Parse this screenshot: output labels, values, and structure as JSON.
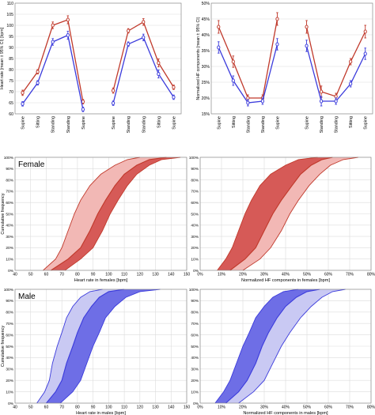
{
  "colors": {
    "red": "#c0392b",
    "blue": "#3b3bdc",
    "red_light": "#f2b8b5",
    "red_dark": "#d65a57",
    "blue_light": "#c9c9f3",
    "blue_dark": "#6e6ee6"
  },
  "chart_data": [
    {
      "type": "line",
      "ylabel": "Heart rate (mean ± 95% CI) [bpm]",
      "ylim": [
        60,
        110
      ],
      "yticks": [
        60,
        65,
        70,
        75,
        80,
        85,
        90,
        95,
        100,
        105,
        110
      ],
      "categories": [
        "Supine",
        "Sitting",
        "Standing",
        "Standing",
        "Supine",
        "Supine",
        "Standing",
        "Standing",
        "Sitting",
        "Supine"
      ],
      "x": [
        0,
        1,
        2,
        3,
        4,
        6,
        7,
        8,
        9,
        10
      ],
      "grid": true,
      "series": [
        {
          "color_key": "red",
          "groups": [
            [
              69.5,
              79,
              100,
              102.5,
              65.5
            ],
            [
              70.5,
              97.5,
              101.5,
              83,
              72
            ]
          ],
          "errors": [
            1.2,
            1.0,
            1.5,
            1.8,
            1.0
          ]
        },
        {
          "color_key": "blue",
          "groups": [
            [
              64.5,
              74,
              92.5,
              95.5,
              62
            ],
            [
              64.8,
              91.5,
              94.5,
              78,
              67.5
            ]
          ],
          "errors": [
            1.0,
            1.0,
            1.5,
            1.8,
            1.0
          ]
        }
      ]
    },
    {
      "type": "line",
      "ylabel": "Normalized HF components (mean ± 95% CI)",
      "ylim": [
        15,
        50
      ],
      "yticks": [
        "15%",
        "20%",
        "25%",
        "30%",
        "35%",
        "40%",
        "45%",
        "50%"
      ],
      "categories": [
        "Supine",
        "Sitting",
        "Standing",
        "Standing",
        "Supine",
        "Supine",
        "Standing",
        "Standing",
        "Sitting",
        "Supine"
      ],
      "x": [
        0,
        1,
        2,
        3,
        4,
        6,
        7,
        8,
        9,
        10
      ],
      "grid": true,
      "series": [
        {
          "color_key": "red",
          "groups": [
            [
              42.5,
              31.5,
              20,
              20,
              45
            ],
            [
              42.5,
              22,
              20.5,
              31.5,
              41
            ]
          ],
          "errors": [
            2.0,
            1.8,
            1.0,
            1.0,
            2.0
          ]
        },
        {
          "color_key": "blue",
          "groups": [
            [
              36,
              25.5,
              18.5,
              19,
              37
            ],
            [
              36.5,
              19,
              19,
              24.5,
              34
            ]
          ],
          "errors": [
            1.8,
            1.5,
            1.0,
            1.0,
            1.8
          ]
        }
      ]
    },
    {
      "type": "area",
      "panel_label": "Female",
      "xlabel": "Heart rate in females [bpm]",
      "ylabel": "Cumulative frequency",
      "xlim": [
        40,
        150
      ],
      "xticks": [
        "40",
        "50",
        "60",
        "70",
        "80",
        "90",
        "100",
        "110",
        "120",
        "130",
        "140",
        "150"
      ],
      "yticks": [
        "0%",
        "10%",
        "20%",
        "30%",
        "40%",
        "50%",
        "60%",
        "70%",
        "80%",
        "90%",
        "100%"
      ],
      "grid": true,
      "series": [
        {
          "light_key": "red_light",
          "line_key": "red",
          "x": [
            58,
            66,
            70,
            74,
            78,
            82,
            88,
            95,
            104,
            112,
            120
          ],
          "y": [
            0,
            10,
            20,
            35,
            50,
            62,
            75,
            85,
            93,
            98,
            100
          ]
        },
        {
          "dark_key": "red_dark",
          "line_key": "red",
          "x": [
            63,
            74,
            82,
            88,
            93,
            98,
            104,
            110,
            118,
            126,
            137
          ],
          "y": [
            0,
            10,
            20,
            35,
            50,
            62,
            75,
            85,
            93,
            98,
            100
          ]
        },
        {
          "line_key": "red",
          "x": [
            72,
            82,
            90,
            96,
            101,
            106,
            112,
            118,
            126,
            134,
            146
          ],
          "y": [
            0,
            10,
            20,
            35,
            50,
            62,
            75,
            85,
            93,
            98,
            100
          ]
        }
      ]
    },
    {
      "type": "area",
      "xlabel": "Normalized HF components in females [bpm]",
      "xlim": [
        0,
        80
      ],
      "xticks": [
        "0%",
        "10%",
        "20%",
        "30%",
        "40%",
        "50%",
        "60%",
        "70%",
        "80%"
      ],
      "yticks": [
        "0%",
        "10%",
        "20%",
        "30%",
        "40%",
        "50%",
        "60%",
        "70%",
        "80%",
        "90%",
        "100%"
      ],
      "grid": true,
      "series": [
        {
          "line_key": "red",
          "x": [
            8,
            12,
            15,
            18,
            21,
            24,
            28,
            33,
            40,
            46,
            55
          ],
          "y": [
            0,
            10,
            20,
            35,
            50,
            62,
            75,
            85,
            93,
            98,
            100
          ]
        },
        {
          "dark_key": "red_dark",
          "line_key": "red",
          "x": [
            14,
            21,
            26,
            30,
            34,
            38,
            43,
            47,
            52,
            57,
            62
          ],
          "y": [
            0,
            10,
            20,
            35,
            50,
            62,
            75,
            85,
            93,
            98,
            100
          ]
        },
        {
          "light_key": "red_light",
          "line_key": "red",
          "x": [
            20,
            28,
            33,
            38,
            42,
            46,
            51,
            56,
            61,
            67,
            74
          ],
          "y": [
            0,
            10,
            20,
            35,
            50,
            62,
            75,
            85,
            93,
            98,
            100
          ]
        }
      ]
    },
    {
      "type": "area",
      "panel_label": "Male",
      "xlabel": "Heart rate in males [bpm]",
      "ylabel": "Cumulative frequency",
      "xlim": [
        40,
        150
      ],
      "xticks": [
        "40",
        "50",
        "60",
        "70",
        "80",
        "90",
        "100",
        "110",
        "120",
        "130",
        "140",
        "150"
      ],
      "yticks": [
        "0%",
        "10%",
        "20%",
        "30%",
        "40%",
        "50%",
        "60%",
        "70%",
        "80%",
        "90%",
        "100%"
      ],
      "grid": true,
      "series": [
        {
          "light_key": "blue_light",
          "line_key": "blue",
          "x": [
            54,
            59,
            62,
            64,
            67,
            70,
            73,
            77,
            82,
            88,
            96
          ],
          "y": [
            0,
            10,
            20,
            35,
            50,
            62,
            75,
            85,
            93,
            98,
            100
          ]
        },
        {
          "dark_key": "blue_dark",
          "line_key": "blue",
          "x": [
            60,
            66,
            70,
            73,
            77,
            80,
            84,
            89,
            94,
            100,
            110
          ],
          "y": [
            0,
            10,
            20,
            35,
            50,
            62,
            75,
            85,
            93,
            98,
            100
          ]
        },
        {
          "line_key": "blue",
          "x": [
            69,
            77,
            82,
            86,
            90,
            94,
            98,
            104,
            111,
            120,
            133
          ],
          "y": [
            0,
            10,
            20,
            35,
            50,
            62,
            75,
            85,
            93,
            98,
            100
          ]
        }
      ]
    },
    {
      "type": "area",
      "xlabel": "Normalized HF components in males [bpm]",
      "xlim": [
        0,
        80
      ],
      "xticks": [
        "0%",
        "10%",
        "20%",
        "30%",
        "40%",
        "50%",
        "60%",
        "70%",
        "80%"
      ],
      "yticks": [
        "0%",
        "10%",
        "20%",
        "30%",
        "40%",
        "50%",
        "60%",
        "70%",
        "80%",
        "90%",
        "100%"
      ],
      "grid": true,
      "series": [
        {
          "line_key": "blue",
          "x": [
            7,
            11,
            14,
            17,
            20,
            23,
            26,
            30,
            34,
            39,
            46
          ],
          "y": [
            0,
            10,
            20,
            35,
            50,
            62,
            75,
            85,
            93,
            98,
            100
          ]
        },
        {
          "dark_key": "blue_dark",
          "line_key": "blue",
          "x": [
            12,
            18,
            22,
            26,
            29,
            32,
            36,
            40,
            45,
            50,
            56
          ],
          "y": [
            0,
            10,
            20,
            35,
            50,
            62,
            75,
            85,
            93,
            98,
            100
          ]
        },
        {
          "light_key": "blue_light",
          "line_key": "blue",
          "x": [
            18,
            25,
            30,
            34,
            38,
            42,
            47,
            52,
            57,
            62,
            68
          ],
          "y": [
            0,
            10,
            20,
            35,
            50,
            62,
            75,
            85,
            93,
            98,
            100
          ]
        }
      ]
    }
  ]
}
